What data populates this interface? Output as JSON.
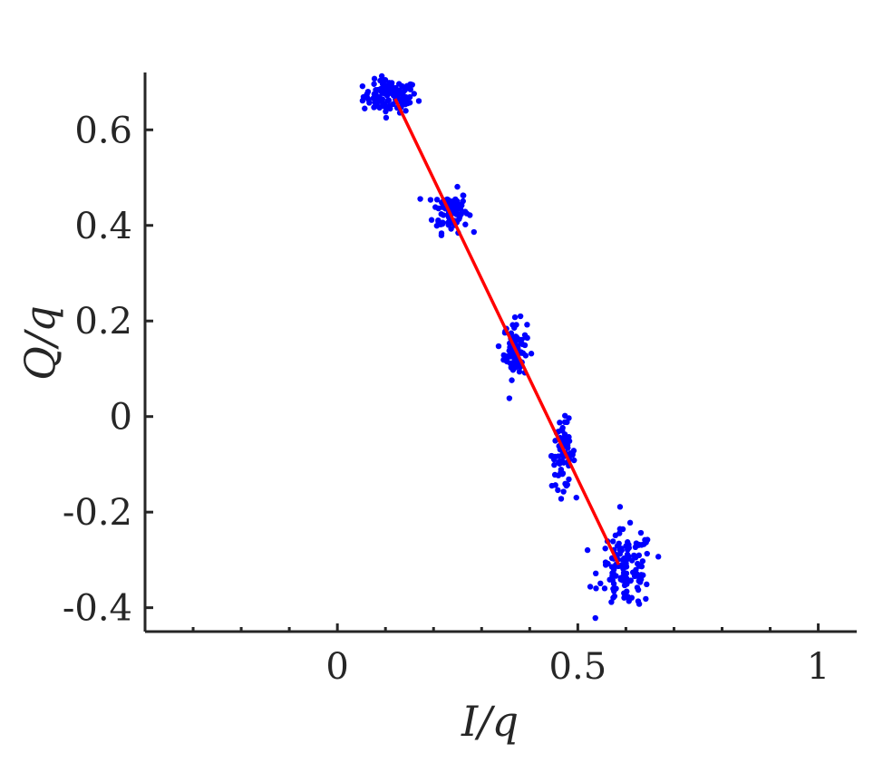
{
  "chart_data": {
    "type": "scatter",
    "title": "",
    "xlabel": "I/q",
    "ylabel": "Q/q",
    "xlim": [
      -0.4,
      1.08
    ],
    "ylim": [
      -0.45,
      0.72
    ],
    "x_ticks": [
      0,
      0.5,
      1
    ],
    "x_tick_labels": [
      "0",
      "0.5",
      "1"
    ],
    "x_minor_ticks": [
      -0.3,
      -0.2,
      -0.1,
      0.1,
      0.2,
      0.3,
      0.4,
      0.6,
      0.7,
      0.8,
      0.9
    ],
    "y_ticks": [
      -0.4,
      -0.2,
      0,
      0.2,
      0.4,
      0.6
    ],
    "y_tick_labels": [
      "-0.4",
      "-0.2",
      "0",
      "0.2",
      "0.4",
      "0.6"
    ],
    "grid": false,
    "legend": "none",
    "colors": {
      "points": "#0000ff",
      "fit_line": "#ff0000",
      "axes": "#262626"
    },
    "clusters": [
      {
        "center": [
          0.11,
          0.67
        ],
        "spread": [
          0.028,
          0.017
        ],
        "count": 110
      },
      {
        "center": [
          0.235,
          0.43
        ],
        "spread": [
          0.018,
          0.022
        ],
        "count": 90
      },
      {
        "center": [
          0.37,
          0.14
        ],
        "spread": [
          0.012,
          0.03
        ],
        "count": 80
      },
      {
        "center": [
          0.47,
          -0.08
        ],
        "spread": [
          0.012,
          0.035
        ],
        "count": 80
      },
      {
        "center": [
          0.6,
          -0.32
        ],
        "spread": [
          0.028,
          0.04
        ],
        "count": 130
      }
    ],
    "series": [
      {
        "type": "line",
        "x": [
          0.12,
          0.585
        ],
        "y": [
          0.665,
          -0.31
        ]
      }
    ]
  }
}
